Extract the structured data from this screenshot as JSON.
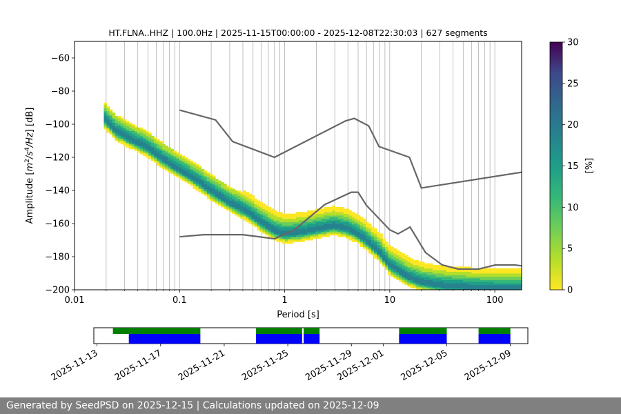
{
  "chart_data": [
    {
      "type": "heatmap",
      "title": "HT.FLNA..HHZ | 100.0Hz | 2025-11-15T00:00:00 - 2025-12-08T22:30:03 | 627 segments",
      "xlabel": "Period [s]",
      "ylabel_parts": [
        "Amplitude [",
        "m",
        "2",
        "/",
        "s",
        "4",
        "/",
        "Hz",
        "] [dB]"
      ],
      "xscale": "log",
      "xlim": [
        0.01,
        180
      ],
      "ylim": [
        -200,
        -50
      ],
      "x_ticks": [
        0.01,
        0.1,
        1,
        10,
        100
      ],
      "x_tick_labels": [
        "0.01",
        "0.1",
        "1",
        "10",
        "100"
      ],
      "y_ticks": [
        -200,
        -180,
        -160,
        -140,
        -120,
        -100,
        -80,
        -60
      ],
      "y_tick_labels": [
        "−200",
        "−180",
        "−160",
        "−140",
        "−120",
        "−100",
        "−80",
        "−60"
      ],
      "grid": true,
      "colormap": "viridis_r",
      "colorbar": {
        "label": "[%]",
        "range": [
          0,
          30
        ],
        "ticks": [
          0,
          5,
          10,
          15,
          20,
          25,
          30
        ],
        "tick_labels": [
          "0",
          "5",
          "10",
          "15",
          "20",
          "25",
          "30"
        ]
      },
      "psd_mode": {
        "period": [
          0.019,
          0.025,
          0.035,
          0.05,
          0.07,
          0.1,
          0.15,
          0.2,
          0.3,
          0.45,
          0.6,
          0.8,
          1.0,
          1.4,
          2.0,
          3.0,
          4.0,
          5.0,
          6.0,
          8.0,
          10.0,
          15.0,
          20.0,
          30.0,
          50.0,
          100.0,
          180.0
        ],
        "amplitude": [
          -97,
          -105,
          -110,
          -115,
          -122,
          -128,
          -135,
          -141,
          -148,
          -154,
          -160,
          -165,
          -167,
          -166,
          -164,
          -162,
          -164,
          -167,
          -171,
          -178,
          -186,
          -193,
          -196,
          -198,
          -199,
          -200,
          -200
        ]
      },
      "noise_models": [
        {
          "name": "NHNM",
          "period": [
            0.1,
            0.22,
            0.32,
            0.8,
            3.8,
            4.6,
            6.3,
            7.9,
            15.4,
            20.0,
            180.0
          ],
          "amplitude": [
            -91.5,
            -97.4,
            -110.5,
            -120.0,
            -98.0,
            -96.5,
            -101.0,
            -113.5,
            -120.0,
            -138.5,
            -129.0
          ]
        },
        {
          "name": "NLNM",
          "period": [
            0.1,
            0.17,
            0.4,
            0.8,
            1.24,
            2.4,
            4.3,
            5.0,
            6.0,
            10.0,
            12.0,
            15.6,
            21.9,
            31.6,
            45.0,
            70.0,
            101.0,
            154.0,
            180.0
          ],
          "amplitude": [
            -168.0,
            -166.7,
            -166.7,
            -169.2,
            -163.7,
            -148.6,
            -141.1,
            -141.1,
            -149.0,
            -163.8,
            -166.2,
            -162.1,
            -177.5,
            -185.0,
            -187.5,
            -187.5,
            -185.0,
            -185.0,
            -185.5
          ]
        }
      ]
    },
    {
      "type": "timeline",
      "x_tick_labels": [
        "2025-11-13",
        "2025-11-17",
        "2025-11-21",
        "2025-11-25",
        "2025-11-29",
        "2025-12-01",
        "2025-12-05",
        "2025-12-09"
      ],
      "x_tick_days": [
        0,
        4,
        8,
        12,
        16,
        18,
        22,
        26
      ],
      "day_range": [
        -0.2,
        27.1
      ],
      "available_data": [
        [
          1.0,
          6.5
        ],
        [
          10.0,
          12.9
        ],
        [
          13.0,
          14.0
        ],
        [
          19.0,
          22.0
        ],
        [
          24.0,
          26.0
        ]
      ],
      "processed_data": [
        [
          2.0,
          6.5
        ],
        [
          10.0,
          12.9
        ],
        [
          13.0,
          14.0
        ],
        [
          19.0,
          22.0
        ],
        [
          24.0,
          26.0
        ]
      ],
      "available_color": "#008000",
      "processed_color": "#0000ff"
    }
  ],
  "footer": {
    "text": "Generated by SeedPSD on 2025-12-15 | Calculations updated on 2025-12-09"
  }
}
